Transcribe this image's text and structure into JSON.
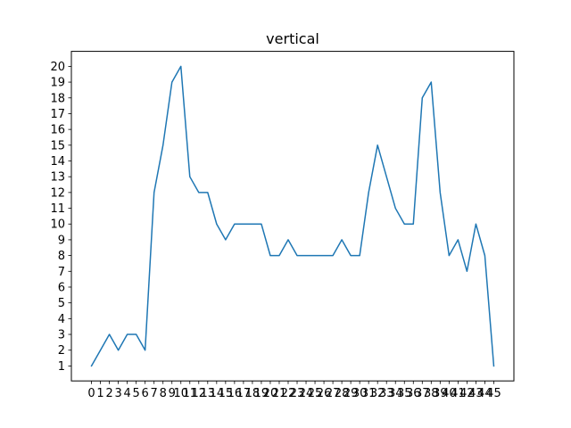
{
  "chart_data": {
    "type": "line",
    "title": "vertical",
    "xlabel": "",
    "ylabel": "",
    "x": [
      0,
      1,
      2,
      3,
      4,
      5,
      6,
      7,
      8,
      9,
      10,
      11,
      12,
      13,
      14,
      15,
      16,
      17,
      18,
      19,
      20,
      21,
      22,
      23,
      24,
      25,
      26,
      27,
      28,
      29,
      30,
      31,
      32,
      33,
      34,
      35,
      36,
      37,
      38,
      39,
      40,
      41,
      42,
      43,
      44,
      45
    ],
    "x_tick_labels": [
      "0",
      "1",
      "2",
      "3",
      "4",
      "5",
      "6",
      "7",
      "8",
      "9",
      "10",
      "11",
      "12",
      "13",
      "14",
      "15",
      "16",
      "17",
      "18",
      "19",
      "20",
      "21",
      "22",
      "23",
      "24",
      "25",
      "26",
      "27",
      "28",
      "29",
      "30",
      "31",
      "32",
      "33",
      "34",
      "35",
      "36",
      "37",
      "38",
      "39",
      "40",
      "41",
      "42",
      "43",
      "44",
      "45"
    ],
    "y_ticks": [
      1,
      2,
      3,
      4,
      5,
      6,
      7,
      8,
      9,
      10,
      11,
      12,
      13,
      14,
      15,
      16,
      17,
      18,
      19,
      20
    ],
    "series": [
      {
        "color": "#1f77b4",
        "values": [
          1,
          2,
          3,
          2,
          3,
          3,
          2,
          12,
          15,
          19,
          20,
          13,
          12,
          12,
          10,
          9,
          10,
          10,
          10,
          10,
          8,
          8,
          9,
          8,
          8,
          8,
          8,
          8,
          9,
          8,
          8,
          12,
          15,
          13,
          11,
          10,
          10,
          18,
          19,
          12,
          8,
          9,
          7,
          10,
          8,
          1
        ]
      }
    ],
    "xlim": [
      -2.25,
      47.25
    ],
    "ylim": [
      0.05,
      20.95
    ],
    "grid": false,
    "legend": "none"
  }
}
